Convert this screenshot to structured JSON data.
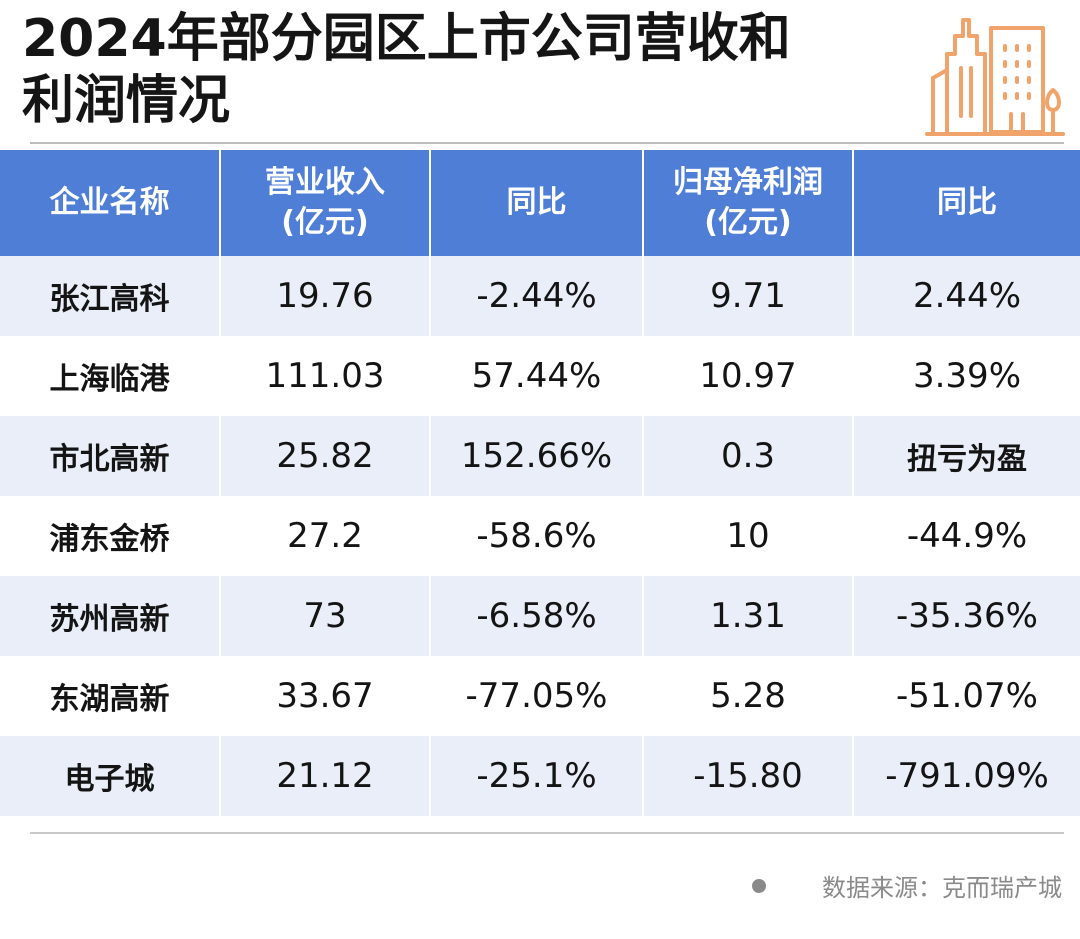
{
  "title": {
    "line1": "2024年部分园区上市公司营收和",
    "line2": "利润情况"
  },
  "colors": {
    "header_bg": "#4f7ed6",
    "row_alt_bg": "#e9eef8",
    "icon_orange": "#f0a36b"
  },
  "icon": "city-buildings-icon",
  "table": {
    "headers": [
      {
        "line1": "企业名称",
        "line2": ""
      },
      {
        "line1": "营业收入",
        "line2": "(亿元)"
      },
      {
        "line1": "同比",
        "line2": ""
      },
      {
        "line1": "归母净利润",
        "line2": "(亿元)"
      },
      {
        "line1": "同比",
        "line2": ""
      }
    ],
    "rows": [
      {
        "name": "张江高科",
        "revenue": "19.76",
        "revenue_yoy": "-2.44%",
        "profit": "9.71",
        "profit_yoy": "2.44%"
      },
      {
        "name": "上海临港",
        "revenue": "111.03",
        "revenue_yoy": "57.44%",
        "profit": "10.97",
        "profit_yoy": "3.39%"
      },
      {
        "name": "市北高新",
        "revenue": "25.82",
        "revenue_yoy": "152.66%",
        "profit": "0.3",
        "profit_yoy": "扭亏为盈"
      },
      {
        "name": "浦东金桥",
        "revenue": "27.2",
        "revenue_yoy": "-58.6%",
        "profit": "10",
        "profit_yoy": "-44.9%"
      },
      {
        "name": "苏州高新",
        "revenue": "73",
        "revenue_yoy": "-6.58%",
        "profit": "1.31",
        "profit_yoy": "-35.36%"
      },
      {
        "name": "东湖高新",
        "revenue": "33.67",
        "revenue_yoy": "-77.05%",
        "profit": "5.28",
        "profit_yoy": "-51.07%"
      },
      {
        "name": "电子城",
        "revenue": "21.12",
        "revenue_yoy": "-25.1%",
        "profit": "-15.80",
        "profit_yoy": "-791.09%"
      }
    ]
  },
  "source": "数据来源：克而瑞产城"
}
